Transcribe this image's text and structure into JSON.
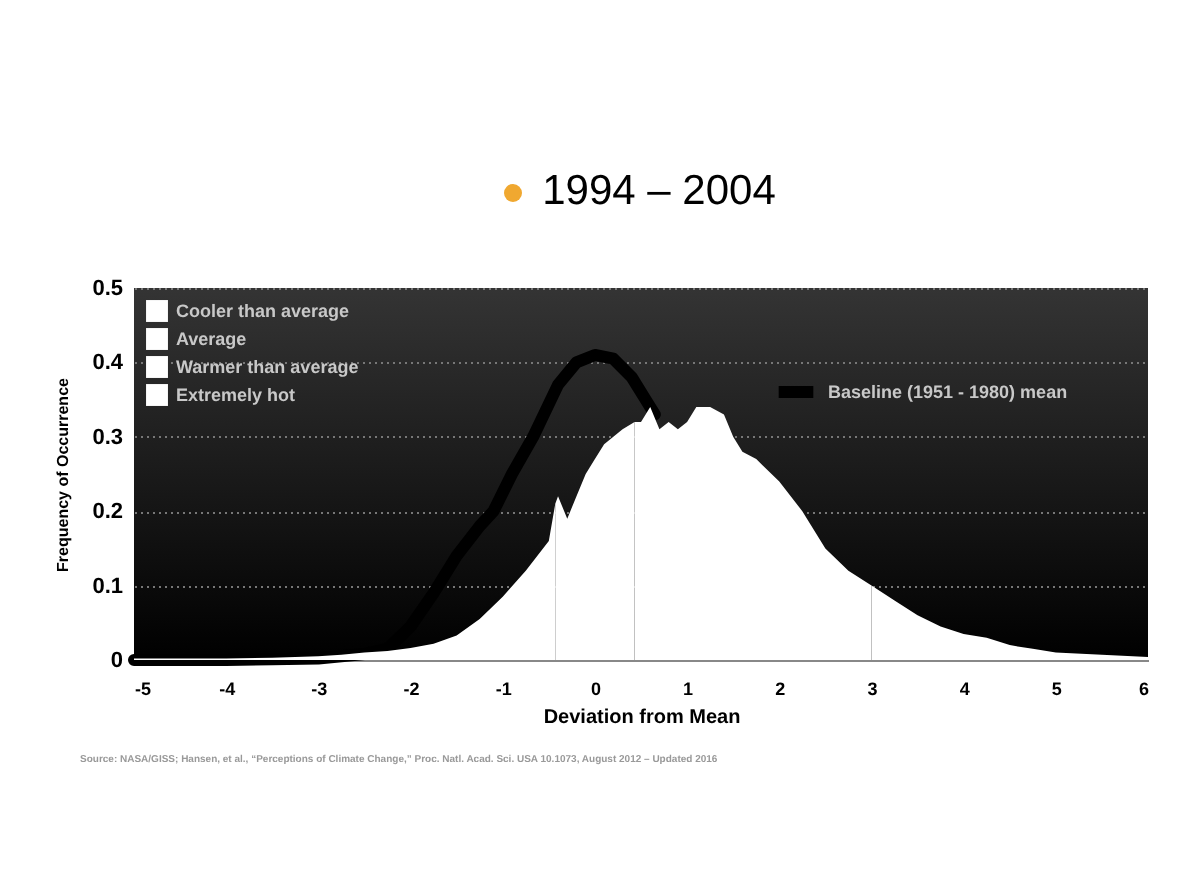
{
  "chart_data": {
    "type": "area",
    "title": "1994 – 2004",
    "xlabel": "Deviation from Mean",
    "ylabel": "Frequency of Occurrence",
    "annotations": [
      "Source: NASA/GISS; Hansen, et al., “Perceptions of Climate Change,” Proc. Natl. Acad. Sci. USA 10.1073, August 2012 – Updated 2016"
    ],
    "xlim": [
      -5,
      6
    ],
    "xticks": [
      -5,
      -4,
      -3,
      -2,
      -1,
      0,
      1,
      2,
      3,
      4,
      5,
      6
    ],
    "ylim": [
      0,
      0.5
    ],
    "yticks": [
      {
        "value": 0,
        "label": "0"
      },
      0.1,
      0.2,
      0.3,
      0.4,
      0.5
    ],
    "grid": "y",
    "legend": "top left",
    "series": [
      {
        "name": "Baseline (1951 - 1980) mean",
        "type": "line",
        "color": "#000000",
        "x": [
          -5,
          -4,
          -3.5,
          -3,
          -2.5,
          -2.25,
          -2,
          -1.75,
          -1.5,
          -1.25,
          -1.1,
          -0.9,
          -0.67,
          -0.4,
          -0.2,
          0,
          0.2,
          0.4,
          0.55,
          0.65
        ],
        "values": [
          0,
          0,
          0.001,
          0.002,
          0.008,
          0.015,
          0.045,
          0.09,
          0.14,
          0.18,
          0.2,
          0.25,
          0.3,
          0.37,
          0.4,
          0.41,
          0.405,
          0.38,
          0.35,
          0.33
        ]
      },
      {
        "name": "Cooler than average",
        "color": "#ffffff",
        "x": [
          -5,
          -4.5,
          -4,
          -3.5,
          -3,
          -2.75,
          -2.5,
          -2.25,
          -2,
          -1.75,
          -1.5,
          -1.25,
          -1,
          -0.75,
          -0.5,
          -0.43
        ],
        "values": [
          0.002,
          0.002,
          0.002,
          0.003,
          0.005,
          0.007,
          0.01,
          0.012,
          0.016,
          0.022,
          0.033,
          0.055,
          0.085,
          0.12,
          0.16,
          0.21
        ]
      },
      {
        "name": "Average",
        "color": "#ffffff",
        "x": [
          -0.43,
          -0.4,
          -0.3,
          -0.2,
          -0.1,
          0,
          0.1,
          0.2,
          0.3,
          0.43
        ],
        "values": [
          0.21,
          0.22,
          0.19,
          0.22,
          0.25,
          0.27,
          0.29,
          0.3,
          0.31,
          0.32
        ]
      },
      {
        "name": "Warmer than average",
        "color": "#ffffff",
        "x": [
          0.43,
          0.5,
          0.6,
          0.7,
          0.8,
          0.9,
          1,
          1.1,
          1.25,
          1.4,
          1.5,
          1.6,
          1.75,
          2,
          2.25,
          2.5,
          2.75,
          3
        ],
        "values": [
          0.32,
          0.32,
          0.34,
          0.31,
          0.32,
          0.31,
          0.32,
          0.34,
          0.34,
          0.33,
          0.3,
          0.28,
          0.27,
          0.24,
          0.2,
          0.15,
          0.12,
          0.1
        ]
      },
      {
        "name": "Extremely hot",
        "color": "#ffffff",
        "x": [
          3,
          3.25,
          3.5,
          3.75,
          4,
          4.25,
          4.5,
          4.75,
          5,
          5.5,
          6
        ],
        "values": [
          0.1,
          0.08,
          0.06,
          0.045,
          0.035,
          0.03,
          0.02,
          0.015,
          0.01,
          0.007,
          0.004
        ]
      }
    ]
  }
}
